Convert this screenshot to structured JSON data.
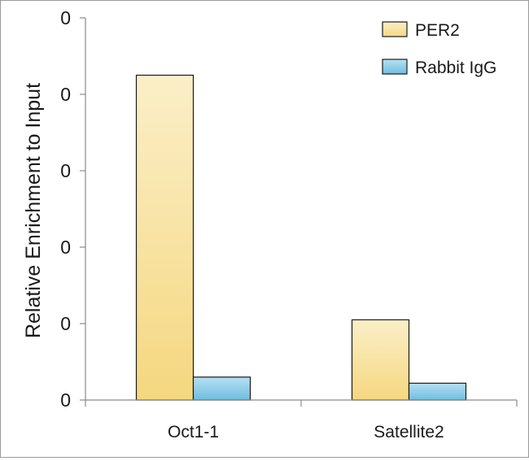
{
  "chart_data": {
    "type": "bar",
    "title": "",
    "xlabel": "",
    "ylabel": "Relative Enrichment to Input",
    "categories": [
      "Oct1-1",
      "Satellite2"
    ],
    "y_tick_labels": [
      "0",
      "0",
      "0",
      "0",
      "0",
      "0"
    ],
    "ylim": [
      0,
      0.5
    ],
    "grid": false,
    "legend_position": "top-right",
    "series": [
      {
        "name": "PER2",
        "values": [
          0.425,
          0.105
        ],
        "color": "#f6dc8f"
      },
      {
        "name": "Rabbit IgG",
        "values": [
          0.03,
          0.022
        ],
        "color": "#8ccbe6"
      }
    ]
  }
}
